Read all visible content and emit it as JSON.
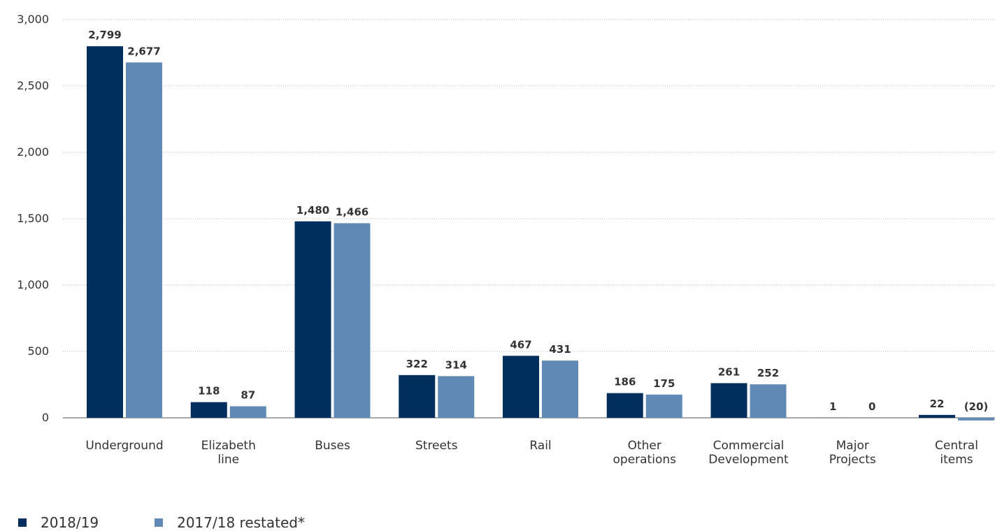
{
  "chart_data": {
    "type": "bar",
    "title": "",
    "xlabel": "",
    "ylabel": "",
    "ylim": [
      0,
      3000
    ],
    "yticks": [
      0,
      500,
      1000,
      1500,
      2000,
      2500,
      3000
    ],
    "ytick_labels": [
      "0",
      "500",
      "1,000",
      "1,500",
      "2,000",
      "2,500",
      "3,000"
    ],
    "grid": true,
    "legend_position": "bottom-left",
    "categories": [
      [
        "Underground"
      ],
      [
        "Elizabeth",
        "line"
      ],
      [
        "Buses"
      ],
      [
        "Streets"
      ],
      [
        "Rail"
      ],
      [
        "Other",
        "operations"
      ],
      [
        "Commercial",
        "Development"
      ],
      [
        "Major",
        "Projects"
      ],
      [
        "Central",
        "items"
      ]
    ],
    "series": [
      {
        "name": "2018/19",
        "color": "#002e5d",
        "values": [
          2799,
          118,
          1480,
          322,
          467,
          186,
          261,
          1,
          22
        ],
        "labels": [
          "2,799",
          "118",
          "1,480",
          "322",
          "467",
          "186",
          "261",
          "1",
          "22"
        ]
      },
      {
        "name": "2017/18 restated*",
        "color": "#6089b5",
        "values": [
          2677,
          87,
          1466,
          314,
          431,
          175,
          252,
          0,
          -20
        ],
        "labels": [
          "2,677",
          "87",
          "1,466",
          "314",
          "431",
          "175",
          "252",
          "0",
          "(20)"
        ]
      }
    ]
  }
}
